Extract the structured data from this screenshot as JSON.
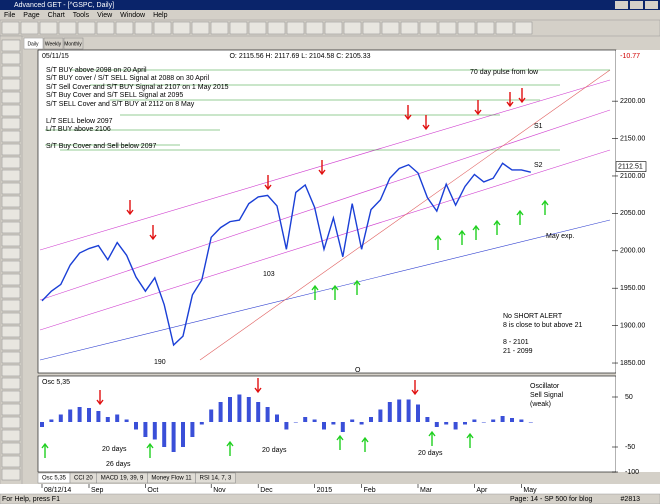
{
  "window": {
    "title": "Advanced GET - [^GSPC, Daily]",
    "menu": [
      "File",
      "Page",
      "Chart",
      "Tools",
      "View",
      "Window",
      "Help"
    ],
    "tabs": [
      "Daily",
      "Weekly",
      "Monthly"
    ]
  },
  "chart_data": [
    {
      "type": "line",
      "header": {
        "date": "05/11/15",
        "ohlc": "O: 2115.56   H: 2117.69   L: 2104.58   C: 2105.33",
        "change": "-10.77"
      },
      "categories": [
        "08/12/14",
        null,
        null,
        null,
        null,
        "Sep",
        null,
        null,
        null,
        null,
        null,
        "Oct",
        null,
        null,
        null,
        null,
        null,
        null,
        "Nov",
        null,
        null,
        null,
        null,
        "Dec",
        null,
        null,
        null,
        null,
        null,
        "2015",
        null,
        null,
        null,
        null,
        "Feb",
        null,
        null,
        null,
        null,
        null,
        "Mar",
        null,
        null,
        null,
        null,
        null,
        "Apr",
        null,
        null,
        null,
        null,
        "May",
        null
      ],
      "series": [
        {
          "color": "#1a3fd6",
          "values": [
            1933,
            1946,
            1955,
            1981,
            1997,
            2003,
            2007,
            1988,
            2011,
            1994,
            1965,
            1946,
            1964,
            1928,
            1874,
            1886,
            1941,
            1961,
            2018,
            2031,
            2039,
            2041,
            2063,
            2072,
            2074,
            2060,
            2002,
            2078,
            2088,
            2058,
            2002,
            2044,
            1992,
            2063,
            2002,
            2055,
            2068,
            2097,
            2110,
            2115,
            2104,
            2071,
            2053,
            2089,
            2061,
            2086,
            2102,
            2092,
            2097,
            2117,
            2108,
            2108,
            2105
          ]
        }
      ],
      "ylim": [
        1838,
        2255
      ],
      "yticks": [
        {
          "value": 2200,
          "label": "2200.00"
        },
        {
          "value": 2150,
          "label": "2150.00"
        },
        {
          "value": 2100,
          "label": "2100.00"
        },
        {
          "value": 2050,
          "label": "2050.00"
        },
        {
          "value": 2000,
          "label": "2000.00"
        },
        {
          "value": 1950,
          "label": "1950.00"
        },
        {
          "value": 1900,
          "label": "1900.00"
        },
        {
          "value": 1850,
          "label": "1850.00"
        }
      ],
      "last_price": 2112.51,
      "annotations": [
        "S/T BUY above 2098 on 20 April",
        "S/T BUY cover / S/T SELL Signal at 2088 on 30 April",
        "S/T Sell Cover and S/T BUY Signal at 2107 on 1 May 2015",
        "S/T Buy Cover and S/T SELL Signal at 2095",
        "S/T SELL Cover and S/T BUY at 2112 on 8 May",
        "L/T SELL below 2097",
        "L/T BUY above 2106",
        "S/T Buy Cover and Sell below 2097",
        "70 day pulse from low",
        "S1",
        "S2",
        "May exp.",
        "103",
        "190",
        "O",
        "No SHORT ALERT",
        "8 is close to but above 21",
        "8    - 2101",
        "21 - 2099"
      ]
    },
    {
      "type": "bar",
      "title": "Osc 5,35",
      "color": "#3a4fd8",
      "values": [
        -10,
        5,
        15,
        25,
        30,
        28,
        22,
        10,
        15,
        5,
        -15,
        -30,
        -35,
        -50,
        -60,
        -50,
        -30,
        -5,
        25,
        40,
        50,
        55,
        50,
        40,
        30,
        15,
        -15,
        0,
        10,
        5,
        -15,
        -5,
        -20,
        5,
        -5,
        10,
        25,
        40,
        45,
        45,
        35,
        10,
        -10,
        -5,
        -15,
        -5,
        5,
        0,
        5,
        12,
        8,
        5,
        0
      ],
      "ylim": [
        -100,
        88
      ],
      "yticks": [
        50,
        -50,
        -100
      ],
      "annotations": [
        "Oscillator",
        "Sell Signal",
        "(weak)",
        "20 days",
        "26 days",
        "20 days",
        "20 days"
      ]
    }
  ],
  "indicator_tabs": [
    "Osc 5,35",
    "CCI 20",
    "MACD 19, 39, 9",
    "Money Flow 11",
    "RSI 14, 7, 3"
  ],
  "status": {
    "help": "For Help, press F1",
    "page": "Page: 14 - SP 500 for blog",
    "number": "#2813"
  }
}
